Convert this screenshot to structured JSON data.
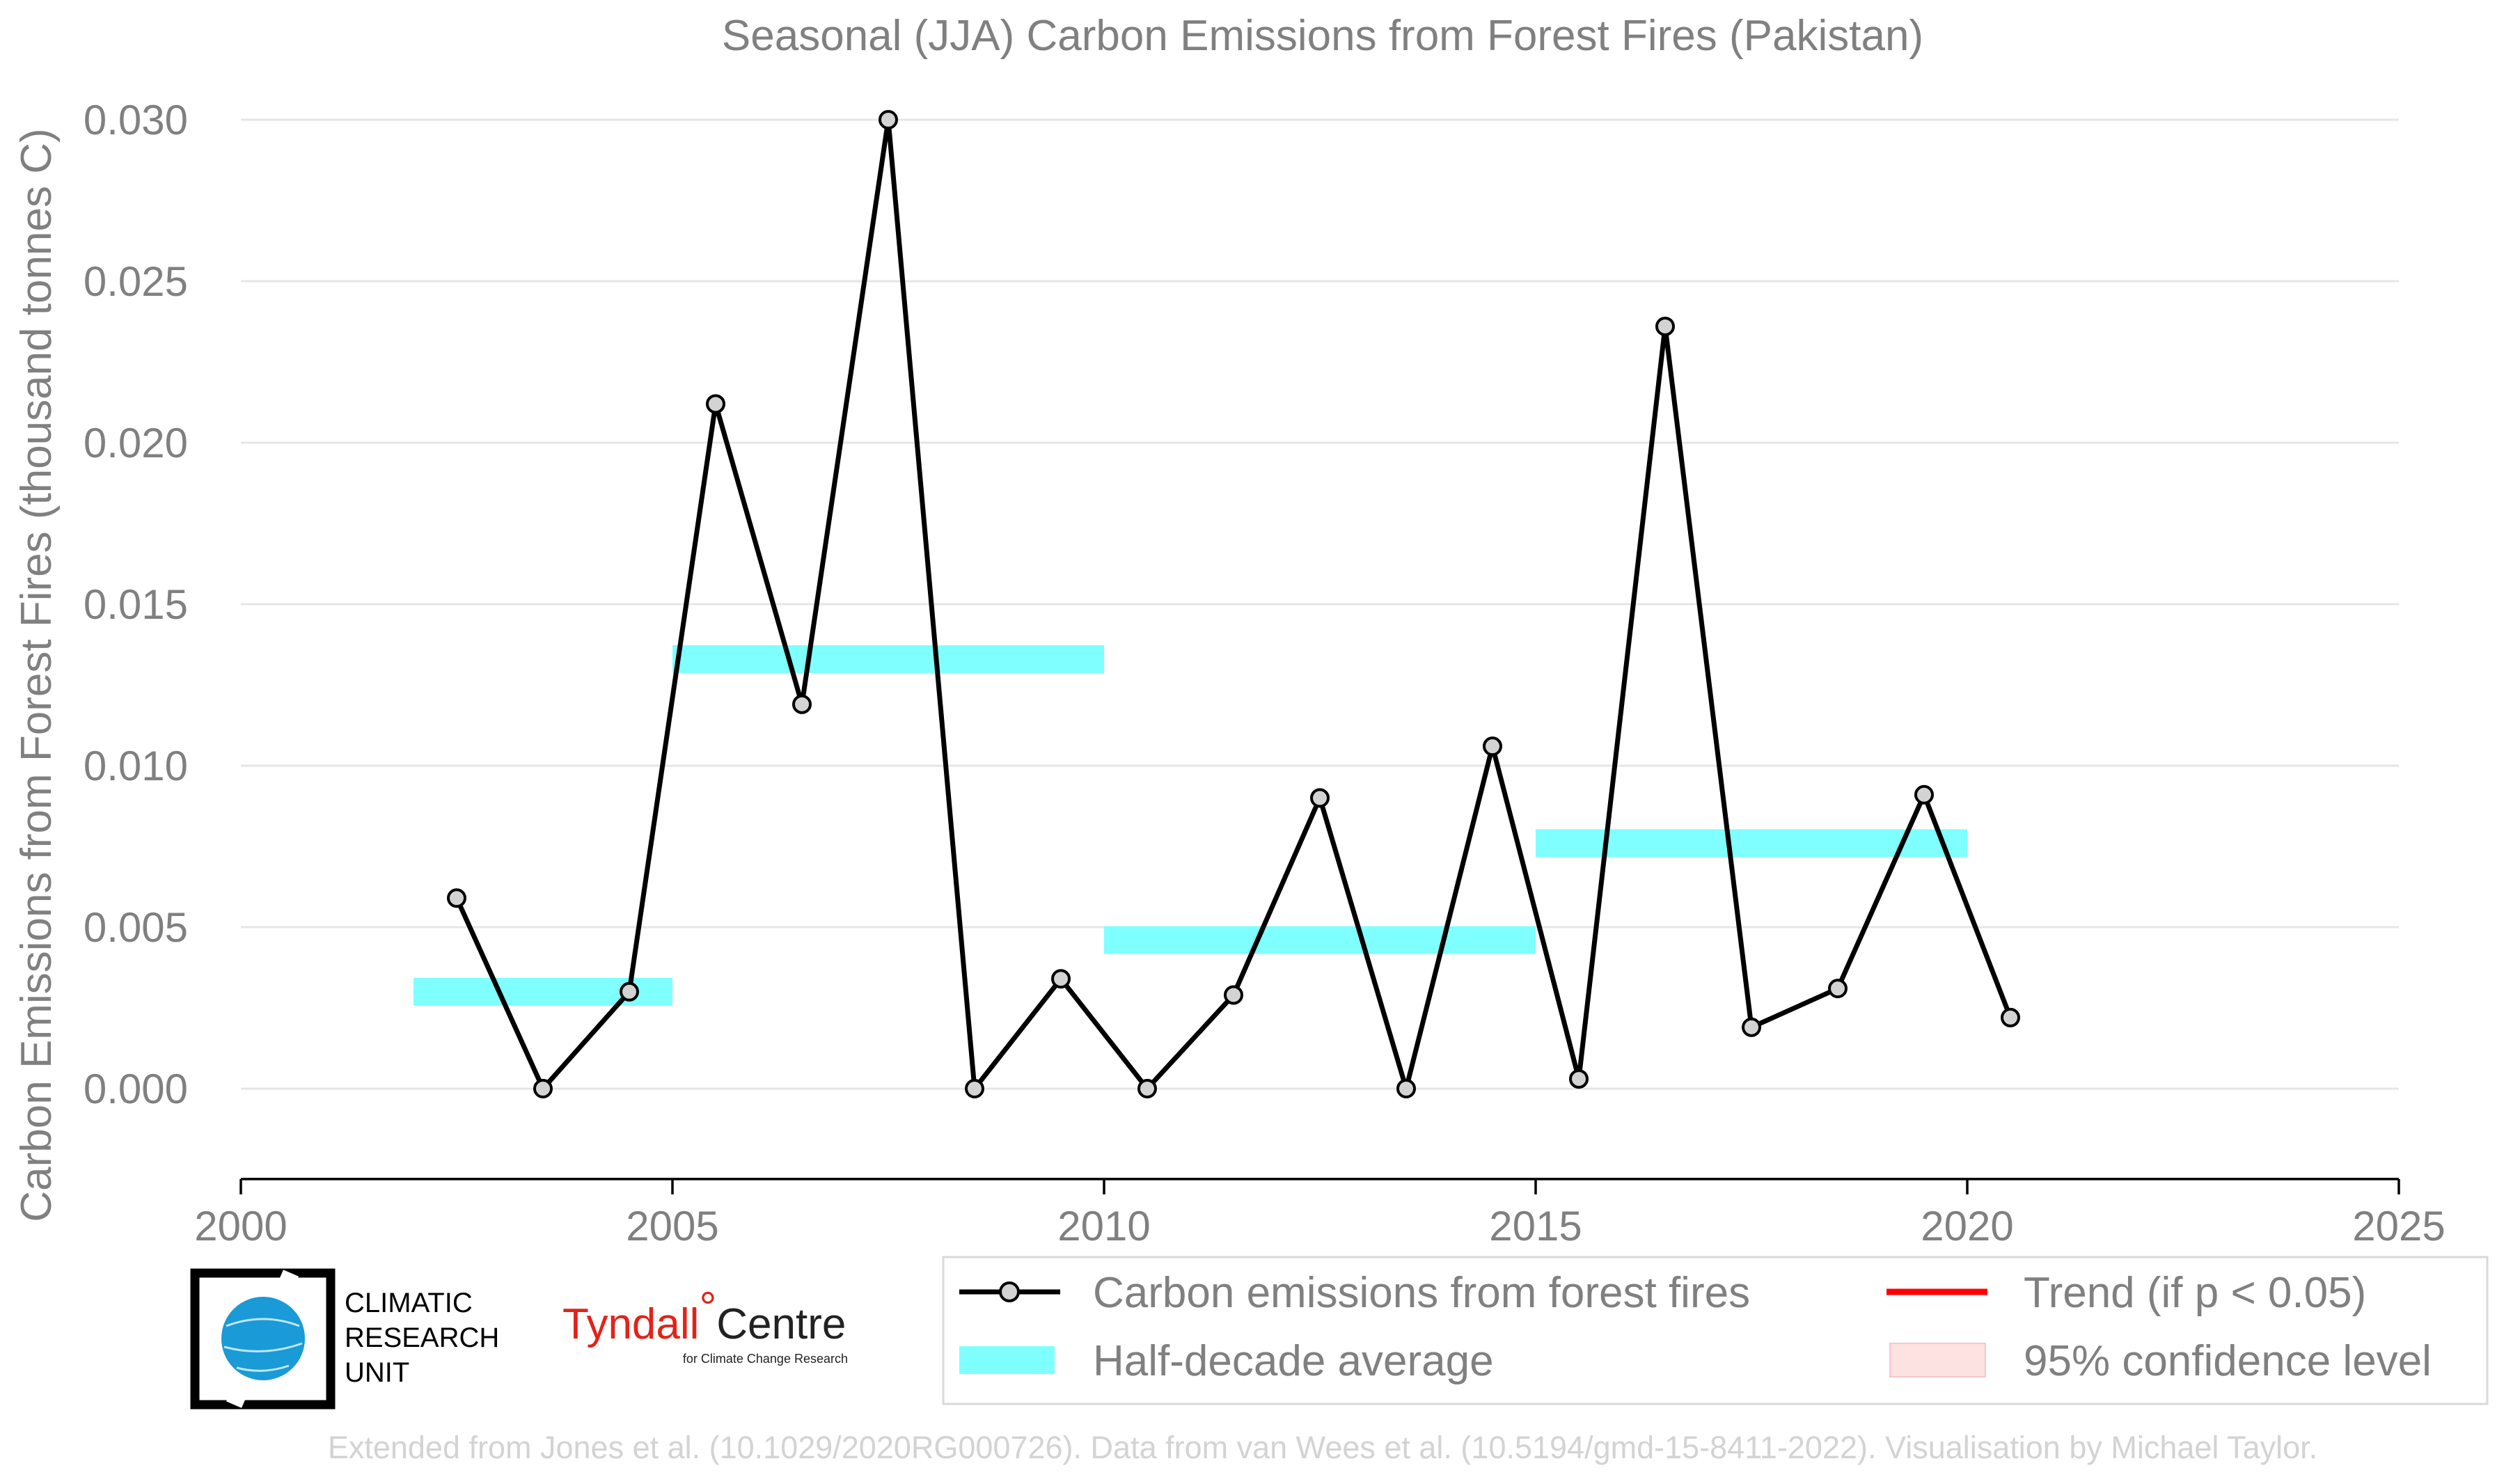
{
  "chart_data": {
    "type": "line",
    "title": "Seasonal (JJA) Carbon Emissions from Forest Fires (Pakistan)",
    "ylabel": "Carbon Emissions from Forest Fires (thousand tonnes C)",
    "xlim": [
      2000,
      2025
    ],
    "ylim": [
      -0.0028,
      0.03
    ],
    "x_ticks": [
      2000,
      2005,
      2010,
      2015,
      2020,
      2025
    ],
    "x_tick_labels": [
      "2000",
      "2005",
      "2010",
      "2015",
      "2020",
      "2025"
    ],
    "y_ticks": [
      0.0,
      0.005,
      0.01,
      0.015,
      0.02,
      0.025,
      0.03
    ],
    "y_tick_labels": [
      "0.000",
      "0.005",
      "0.010",
      "0.015",
      "0.020",
      "0.025",
      "0.030"
    ],
    "grid": "horizontal",
    "series": [
      {
        "name": "Carbon emissions from forest fires",
        "color": "#000000",
        "marker_fill": "#d3d3d3",
        "x": [
          2002.5,
          2003.5,
          2004.5,
          2005.5,
          2006.5,
          2007.5,
          2008.5,
          2009.5,
          2010.5,
          2011.5,
          2012.5,
          2013.5,
          2014.5,
          2015.5,
          2016.5,
          2017.5,
          2018.5,
          2019.5,
          2020.5
        ],
        "values": [
          0.0059,
          0.0,
          0.003,
          0.0212,
          0.0119,
          0.03,
          0.0,
          0.0034,
          0.0,
          0.0029,
          0.009,
          0.0,
          0.0106,
          0.0003,
          0.0236,
          0.0019,
          0.0031,
          0.0091,
          0.0022
        ]
      }
    ],
    "half_decade_average": {
      "name": "Half-decade average",
      "color": "#7fffff",
      "segments": [
        {
          "x_start": 2002,
          "x_end": 2005,
          "value": 0.003
        },
        {
          "x_start": 2005,
          "x_end": 2010,
          "value": 0.0133
        },
        {
          "x_start": 2010,
          "x_end": 2015,
          "value": 0.0046
        },
        {
          "x_start": 2015,
          "x_end": 2020,
          "value": 0.0076
        }
      ]
    },
    "legend": {
      "placement": "bottom-right",
      "entries": [
        {
          "label": "Carbon emissions from forest fires",
          "kind": "line-marker",
          "color": "#000000"
        },
        {
          "label": "Trend (if p < 0.05)",
          "kind": "line",
          "color": "#ff0000"
        },
        {
          "label": "Half-decade average",
          "kind": "band",
          "color": "#7fffff"
        },
        {
          "label": "95% confidence level",
          "kind": "patch",
          "color": "#fde2e2"
        }
      ]
    }
  },
  "logos": {
    "cru": {
      "line1": "CLIMATIC",
      "line2": "RESEARCH",
      "line3": "UNIT"
    },
    "tyndall": {
      "main": "Tyndall",
      "degree": "°",
      "centre": "Centre",
      "sub": "for Climate Change Research"
    }
  },
  "credit": "Extended from Jones et al. (10.1029/2020RG000726). Data from van Wees et al. (10.5194/gmd-15-8411-2022). Visualisation by Michael Taylor."
}
